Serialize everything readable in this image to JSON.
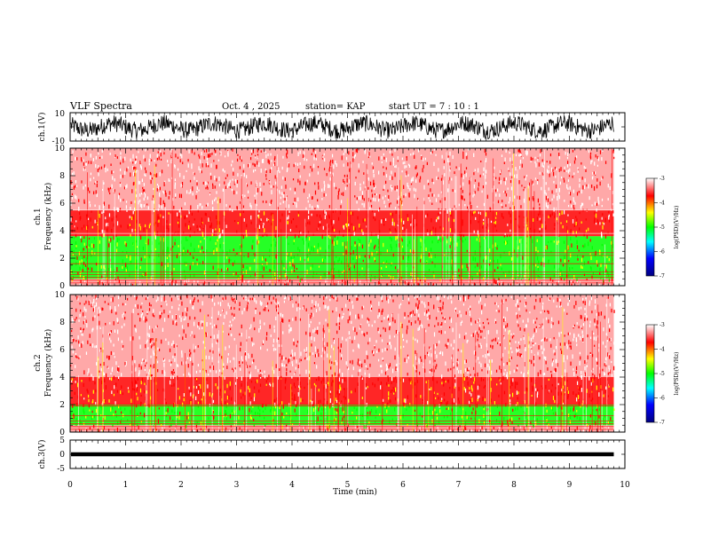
{
  "header": {
    "title": "VLF Spectra",
    "date": "Oct. 4  , 2025",
    "station": "station= KAP",
    "start_time": "start  UT =   7 : 10 : 1"
  },
  "chart_data": [
    {
      "type": "line",
      "panel": "ch1-waveform",
      "ylabel": "ch.1(V)",
      "ylim": [
        -10,
        10
      ],
      "y_tick_labels": [
        "10",
        "-10"
      ],
      "description_values": "noise waveform, amplitude about ±8 V",
      "xlim": [
        0,
        10
      ],
      "data_end_min": 9.8,
      "line_color": "#000000"
    },
    {
      "type": "heatmap",
      "panel": "ch1-spectrogram",
      "ylabel_line1": "ch.1",
      "ylabel_line2": "Frequency  (kHz)",
      "ylim": [
        0,
        10
      ],
      "y_tick_labels": [
        "0",
        "2",
        "4",
        "6",
        "8",
        "10"
      ],
      "xlim": [
        0,
        10
      ],
      "data_end_min": 9.8,
      "colorbar": {
        "label": "log(PSD)(V²/Hz)",
        "range": [
          -7,
          -3
        ],
        "tick_labels": [
          "-3",
          "-4",
          "-5",
          "-6",
          "-7"
        ]
      },
      "bands_khz": [
        {
          "low": 0,
          "high": 0.5,
          "level": -3.2
        },
        {
          "low": 0.5,
          "high": 3.6,
          "level": -4.9
        },
        {
          "low": 3.6,
          "high": 5.5,
          "level": -3.9
        },
        {
          "low": 5.5,
          "high": 10,
          "level": -3.3
        }
      ],
      "lines_khz": [
        0.2,
        0.4,
        0.6,
        0.8,
        1.0,
        1.6,
        2.2,
        2.4,
        3.8,
        5.5
      ]
    },
    {
      "type": "heatmap",
      "panel": "ch2-spectrogram",
      "ylabel_line1": "ch.2",
      "ylabel_line2": "Frequency  (kHz)",
      "ylim": [
        0,
        10
      ],
      "y_tick_labels": [
        "0",
        "2",
        "4",
        "6",
        "8",
        "10"
      ],
      "xlim": [
        0,
        10
      ],
      "data_end_min": 9.8,
      "colorbar": {
        "label": "log(PSD)(V²/Hz)",
        "range": [
          -7,
          -3
        ],
        "tick_labels": [
          "-3",
          "-4",
          "-5",
          "-6",
          "-7"
        ]
      },
      "bands_khz": [
        {
          "low": 0,
          "high": 0.5,
          "level": -3.2
        },
        {
          "low": 0.5,
          "high": 2.0,
          "level": -4.9
        },
        {
          "low": 2.0,
          "high": 4.0,
          "level": -4.0
        },
        {
          "low": 4.0,
          "high": 10,
          "level": -3.3
        }
      ],
      "lines_khz": [
        0.2,
        0.4,
        0.6,
        0.8,
        1.2,
        1.9,
        2.0
      ]
    },
    {
      "type": "line",
      "panel": "ch3-waveform",
      "ylabel": "ch.3(V)",
      "ylim": [
        -5,
        5
      ],
      "y_tick_labels": [
        "5",
        "0",
        "-5"
      ],
      "level_v": 0,
      "amplitude_v": 0.7,
      "xlim": [
        0,
        10
      ],
      "data_end_min": 9.8,
      "line_color": "#000000"
    }
  ],
  "x_axis": {
    "label": "Time  (min)",
    "tick_labels": [
      "0",
      "1",
      "2",
      "3",
      "4",
      "5",
      "6",
      "7",
      "8",
      "9",
      "10"
    ]
  },
  "colors": {
    "colormap": [
      "#000080",
      "#0000ff",
      "#00ffff",
      "#00ff00",
      "#ffff00",
      "#ff0000",
      "#ffffff"
    ],
    "spectrogram_red": "#ff0000",
    "spectrogram_yellow": "#ffff00",
    "spectrogram_green": "#00ff00"
  }
}
